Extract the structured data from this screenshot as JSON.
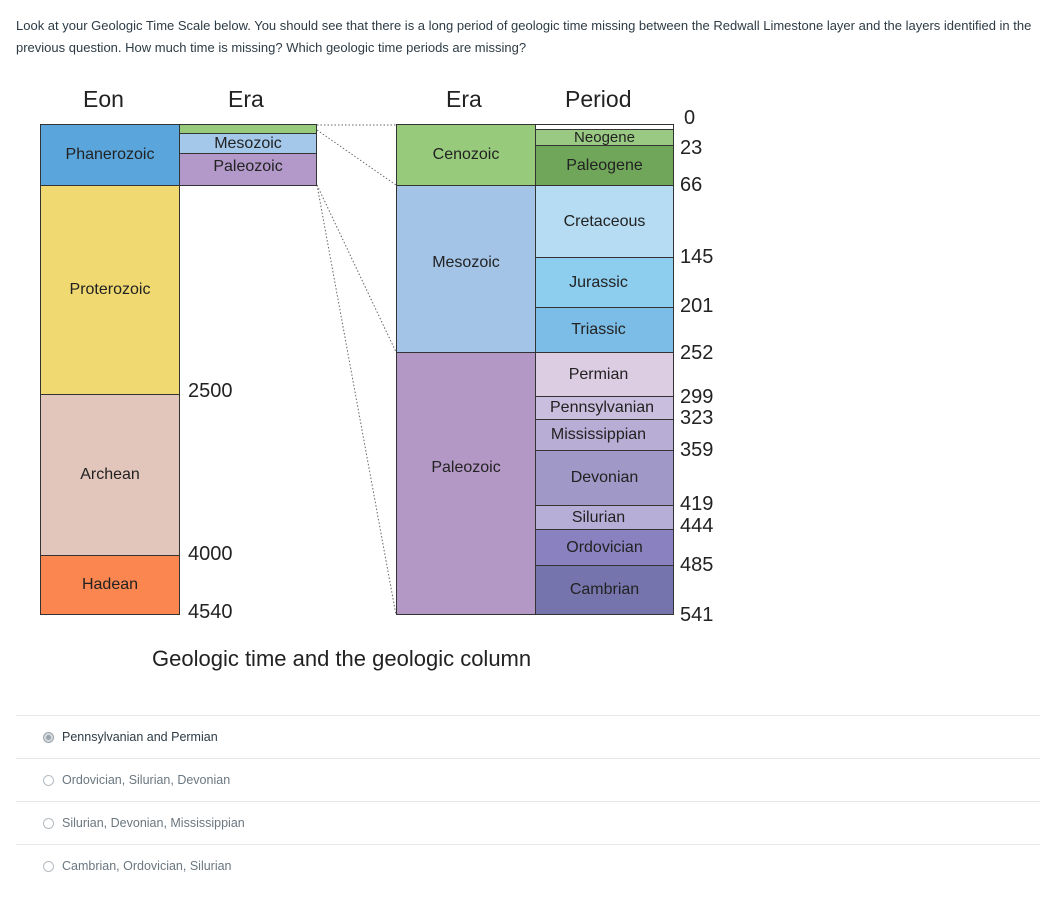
{
  "question": {
    "text": "Look at your Geologic Time Scale below. You should see that there is a long period of geologic time missing between the Redwall Limestone layer and the layers identified in the previous question. How much time is missing? Which geologic time periods are missing?"
  },
  "figure": {
    "caption": "Geologic time and the geologic column",
    "headers": {
      "eon": "Eon",
      "era_left": "Era",
      "era_right": "Era",
      "period": "Period"
    },
    "colors": {
      "phanerozoic": "#5aa6dc",
      "proterozoic": "#efd970",
      "archean": "#e2c6bc",
      "hadean": "#fc8650",
      "mesozoic_left": "#a3c8ea",
      "paleozoic_left": "#b399c9",
      "cenozoic": "#98ca7c",
      "mesozoic": "#a3c4e6",
      "paleozoic": "#b398c6",
      "neogene": "#99c982",
      "paleogene": "#6fa65a",
      "cretaceous": "#b5dcf3",
      "jurassic": "#8dcdee",
      "triassic": "#7bbde6",
      "permian": "#dccde3",
      "pennsylvanian": "#c9bedd",
      "mississippian": "#b8add4",
      "devonian": "#a098c6",
      "silurian": "#b6aed6",
      "ordovician": "#8a81c0",
      "cambrian": "#7674ad"
    },
    "eons": [
      "Phanerozoic",
      "Proterozoic",
      "Archean",
      "Hadean"
    ],
    "eon_boundaries": [
      "2500",
      "4000",
      "4540"
    ],
    "eras_left": [
      "Mesozoic",
      "Paleozoic"
    ],
    "eras_right": [
      "Cenozoic",
      "Mesozoic",
      "Paleozoic"
    ],
    "periods": [
      "Neogene",
      "Paleogene",
      "Cretaceous",
      "Jurassic",
      "Triassic",
      "Permian",
      "Pennsylvanian",
      "Mississippian",
      "Devonian",
      "Silurian",
      "Ordovician",
      "Cambrian"
    ],
    "period_ages": [
      "0",
      "23",
      "66",
      "145",
      "201",
      "252",
      "299",
      "323",
      "359",
      "419",
      "444",
      "485",
      "541"
    ]
  },
  "answers": [
    {
      "label": "Pennsylvanian and Permian",
      "selected": true
    },
    {
      "label": "Ordovician, Silurian, Devonian",
      "selected": false
    },
    {
      "label": "Silurian, Devonian, Mississippian",
      "selected": false
    },
    {
      "label": "Cambrian, Ordovician, Silurian",
      "selected": false
    }
  ]
}
